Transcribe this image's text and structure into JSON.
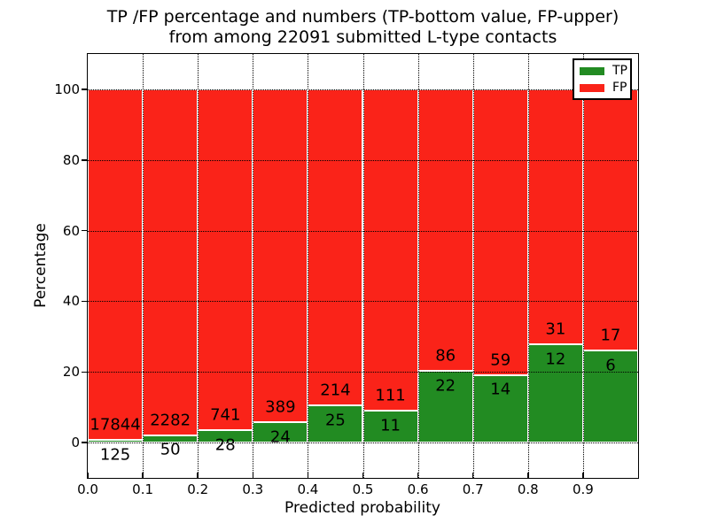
{
  "chart_data": {
    "type": "bar",
    "stacking": "percent",
    "title_line1": "TP /FP percentage and numbers (TP-bottom value, FP-upper)",
    "title_line2": "from among 22091 submitted L-type contacts",
    "title": "TP /FP percentage and numbers (TP-bottom value, FP-upper)\nfrom among 22091 submitted L-type contacts",
    "xlabel": "Predicted probability",
    "ylabel": "Percentage",
    "total_contacts": 22091,
    "bin_edges": [
      0.0,
      0.1,
      0.2,
      0.3,
      0.4,
      0.5,
      0.6,
      0.7,
      0.8,
      0.9,
      1.0
    ],
    "series": [
      {
        "name": "TP",
        "color": "#228b22",
        "counts": [
          125,
          50,
          28,
          24,
          25,
          11,
          22,
          14,
          12,
          6
        ]
      },
      {
        "name": "FP",
        "color": "#fa2319",
        "counts": [
          17844,
          2282,
          741,
          389,
          214,
          111,
          86,
          59,
          31,
          17
        ]
      }
    ],
    "tp_percent": [
      0.7,
      2.14,
      3.64,
      5.81,
      10.46,
      9.02,
      20.37,
      19.18,
      27.91,
      26.09
    ],
    "x_ticks": [
      "0.0",
      "0.1",
      "0.2",
      "0.3",
      "0.4",
      "0.5",
      "0.6",
      "0.7",
      "0.8",
      "0.9"
    ],
    "y_ticks": [
      0,
      20,
      40,
      60,
      80,
      100
    ],
    "xlim": [
      0,
      1
    ],
    "ylim": [
      -10,
      110
    ],
    "grid": "dotted",
    "legend": {
      "position": "upper right",
      "entries": [
        {
          "label": "TP",
          "color": "#228b22"
        },
        {
          "label": "FP",
          "color": "#fa2319"
        }
      ]
    }
  }
}
